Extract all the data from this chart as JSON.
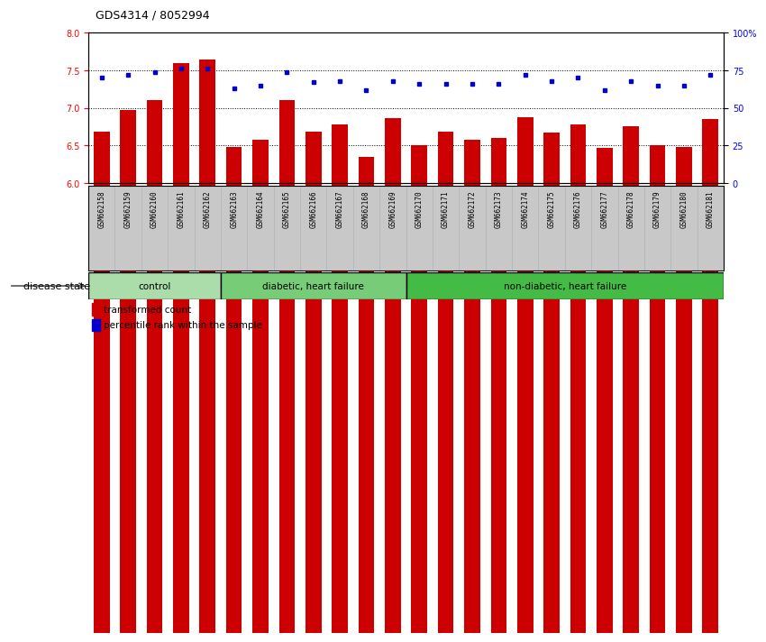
{
  "title": "GDS4314 / 8052994",
  "samples": [
    "GSM662158",
    "GSM662159",
    "GSM662160",
    "GSM662161",
    "GSM662162",
    "GSM662163",
    "GSM662164",
    "GSM662165",
    "GSM662166",
    "GSM662167",
    "GSM662168",
    "GSM662169",
    "GSM662170",
    "GSM662171",
    "GSM662172",
    "GSM662173",
    "GSM662174",
    "GSM662175",
    "GSM662176",
    "GSM662177",
    "GSM662178",
    "GSM662179",
    "GSM662180",
    "GSM662181"
  ],
  "bar_values": [
    6.68,
    6.97,
    7.1,
    7.6,
    7.65,
    6.48,
    6.57,
    7.1,
    6.68,
    6.78,
    6.35,
    6.86,
    6.5,
    6.68,
    6.58,
    6.6,
    6.87,
    6.67,
    6.78,
    6.47,
    6.75,
    6.5,
    6.48,
    6.85
  ],
  "dot_values": [
    70,
    72,
    74,
    76,
    76,
    63,
    65,
    74,
    67,
    68,
    62,
    68,
    66,
    66,
    66,
    66,
    72,
    68,
    70,
    62,
    68,
    65,
    65,
    72
  ],
  "groups": [
    {
      "label": "control",
      "start": 0,
      "end": 5,
      "color": "#aaddaa"
    },
    {
      "label": "diabetic, heart failure",
      "start": 5,
      "end": 12,
      "color": "#77cc77"
    },
    {
      "label": "non-diabetic, heart failure",
      "start": 12,
      "end": 24,
      "color": "#44bb44"
    }
  ],
  "ylim_left": [
    6.0,
    8.0
  ],
  "ylim_right": [
    0,
    100
  ],
  "yticks_left": [
    6.0,
    6.5,
    7.0,
    7.5,
    8.0
  ],
  "yticks_right": [
    0,
    25,
    50,
    75,
    100
  ],
  "yticklabels_right": [
    "0",
    "25",
    "50",
    "75",
    "100%"
  ],
  "bar_color": "#cc0000",
  "dot_color": "#0000cc",
  "bar_width": 0.6,
  "legend_bar_label": "transformed count",
  "legend_dot_label": "percentile rank within the sample",
  "disease_state_label": "disease state",
  "tick_bg_color": "#c8c8c8",
  "plot_bg_color": "#ffffff"
}
